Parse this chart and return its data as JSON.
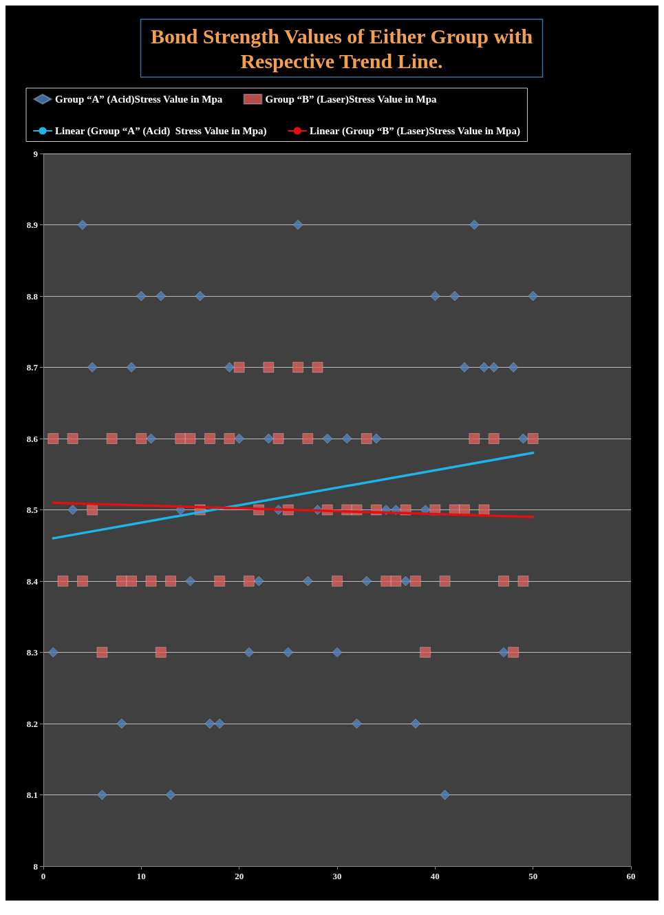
{
  "chart_data": {
    "type": "scatter",
    "title": "Bond Strength Values of Either Group with\nRespective Trend Line.",
    "xlim": [
      0,
      60
    ],
    "xticks": [
      0,
      10,
      20,
      30,
      40,
      50,
      60
    ],
    "ylim": [
      8,
      9
    ],
    "yticks": [
      8,
      8.1,
      8.2,
      8.3,
      8.4,
      8.5,
      8.6,
      8.7,
      8.8,
      8.9,
      9
    ],
    "grid": "y",
    "legend": "top left",
    "series": [
      {
        "name": "Group “A” (Acid)Stress Value in Mpa",
        "color": "#4f81bd",
        "marker": "diamond",
        "x": [
          1,
          2,
          3,
          4,
          5,
          6,
          7,
          8,
          9,
          10,
          11,
          12,
          13,
          14,
          15,
          16,
          17,
          18,
          19,
          20,
          21,
          22,
          23,
          24,
          25,
          26,
          27,
          28,
          29,
          30,
          31,
          32,
          33,
          34,
          35,
          36,
          37,
          38,
          39,
          40,
          41,
          42,
          43,
          44,
          45,
          46,
          47,
          48,
          49,
          50
        ],
        "values": [
          8.3,
          null,
          8.5,
          8.9,
          8.7,
          8.1,
          null,
          8.2,
          8.7,
          8.8,
          8.6,
          8.8,
          8.1,
          8.5,
          8.4,
          8.8,
          8.2,
          8.2,
          8.7,
          8.6,
          8.3,
          8.4,
          8.6,
          8.5,
          8.3,
          8.9,
          8.4,
          8.5,
          8.6,
          8.3,
          8.6,
          8.2,
          8.4,
          8.6,
          8.5,
          8.5,
          8.4,
          8.2,
          8.5,
          8.8,
          8.1,
          8.8,
          8.7,
          8.9,
          8.7,
          8.7,
          8.3,
          8.7,
          8.6,
          8.8
        ]
      },
      {
        "name": "Group “B” (Laser)Stress Value in Mpa",
        "color": "#d9605c",
        "marker": "square",
        "x": [
          1,
          2,
          3,
          4,
          5,
          6,
          7,
          8,
          9,
          10,
          11,
          12,
          13,
          14,
          15,
          16,
          17,
          18,
          19,
          20,
          21,
          22,
          23,
          24,
          25,
          26,
          27,
          28,
          29,
          30,
          31,
          32,
          33,
          34,
          35,
          36,
          37,
          38,
          39,
          40,
          41,
          42,
          43,
          44,
          45,
          46,
          47,
          48,
          49,
          50
        ],
        "values": [
          8.6,
          8.4,
          8.6,
          8.4,
          8.5,
          8.3,
          8.6,
          8.4,
          8.4,
          8.6,
          8.4,
          8.3,
          8.4,
          8.6,
          8.6,
          8.5,
          8.6,
          8.4,
          8.6,
          8.7,
          8.4,
          8.5,
          8.7,
          8.6,
          8.5,
          8.7,
          8.6,
          8.7,
          8.5,
          8.4,
          8.5,
          8.5,
          8.6,
          8.5,
          8.4,
          8.4,
          8.5,
          8.4,
          8.3,
          8.5,
          8.4,
          8.5,
          8.5,
          8.6,
          8.5,
          8.6,
          8.4,
          8.3,
          8.4,
          8.6
        ]
      },
      {
        "name": "Linear (Group “A” (Acid)  Stress Value in Mpa)",
        "type": "line",
        "color": "#1fb4e6",
        "marker": "none",
        "x": [
          1,
          50
        ],
        "values": [
          8.46,
          8.58
        ]
      },
      {
        "name": "Linear (Group “B” (Laser)Stress Value in Mpa)",
        "type": "line",
        "color": "#e01010",
        "marker": "none",
        "x": [
          1,
          50
        ],
        "values": [
          8.51,
          8.49
        ]
      }
    ]
  }
}
